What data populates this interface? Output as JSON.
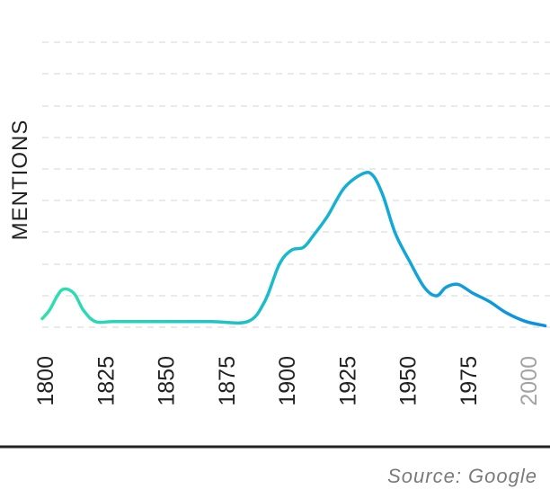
{
  "chart_data": {
    "type": "line",
    "ylabel": "MENTIONS",
    "xlabel": "",
    "source": "Source: Google",
    "xlim": [
      1800,
      2010
    ],
    "ylim": [
      0,
      10
    ],
    "grid": true,
    "x_ticks": [
      {
        "label": "1800",
        "value": 1800,
        "muted": false
      },
      {
        "label": "1825",
        "value": 1825,
        "muted": false
      },
      {
        "label": "1850",
        "value": 1850,
        "muted": false
      },
      {
        "label": "1875",
        "value": 1875,
        "muted": false
      },
      {
        "label": "1900",
        "value": 1900,
        "muted": false
      },
      {
        "label": "1925",
        "value": 1925,
        "muted": false
      },
      {
        "label": "1950",
        "value": 1950,
        "muted": false
      },
      {
        "label": "1975",
        "value": 1975,
        "muted": false
      },
      {
        "label": "2000",
        "value": 2000,
        "muted": true
      }
    ],
    "series": [
      {
        "x": [
          1800,
          1803,
          1808,
          1813,
          1817,
          1822,
          1830,
          1850,
          1870,
          1885,
          1892,
          1898,
          1903,
          1908,
          1912,
          1918,
          1925,
          1933,
          1937,
          1941,
          1946,
          1952,
          1958,
          1963,
          1967,
          1972,
          1978,
          1985,
          1992,
          2000,
          2008
        ],
        "y": [
          0.3,
          0.6,
          1.3,
          1.2,
          0.6,
          0.2,
          0.2,
          0.2,
          0.2,
          0.2,
          0.9,
          2.2,
          2.7,
          2.8,
          3.2,
          3.9,
          4.9,
          5.4,
          5.3,
          4.6,
          3.3,
          2.3,
          1.4,
          1.1,
          1.4,
          1.5,
          1.2,
          0.9,
          0.5,
          0.2,
          0.05
        ],
        "color_start": "#2ee0b0",
        "color_mid": "#18b8cf",
        "color_end": "#0b8fe0"
      }
    ]
  }
}
